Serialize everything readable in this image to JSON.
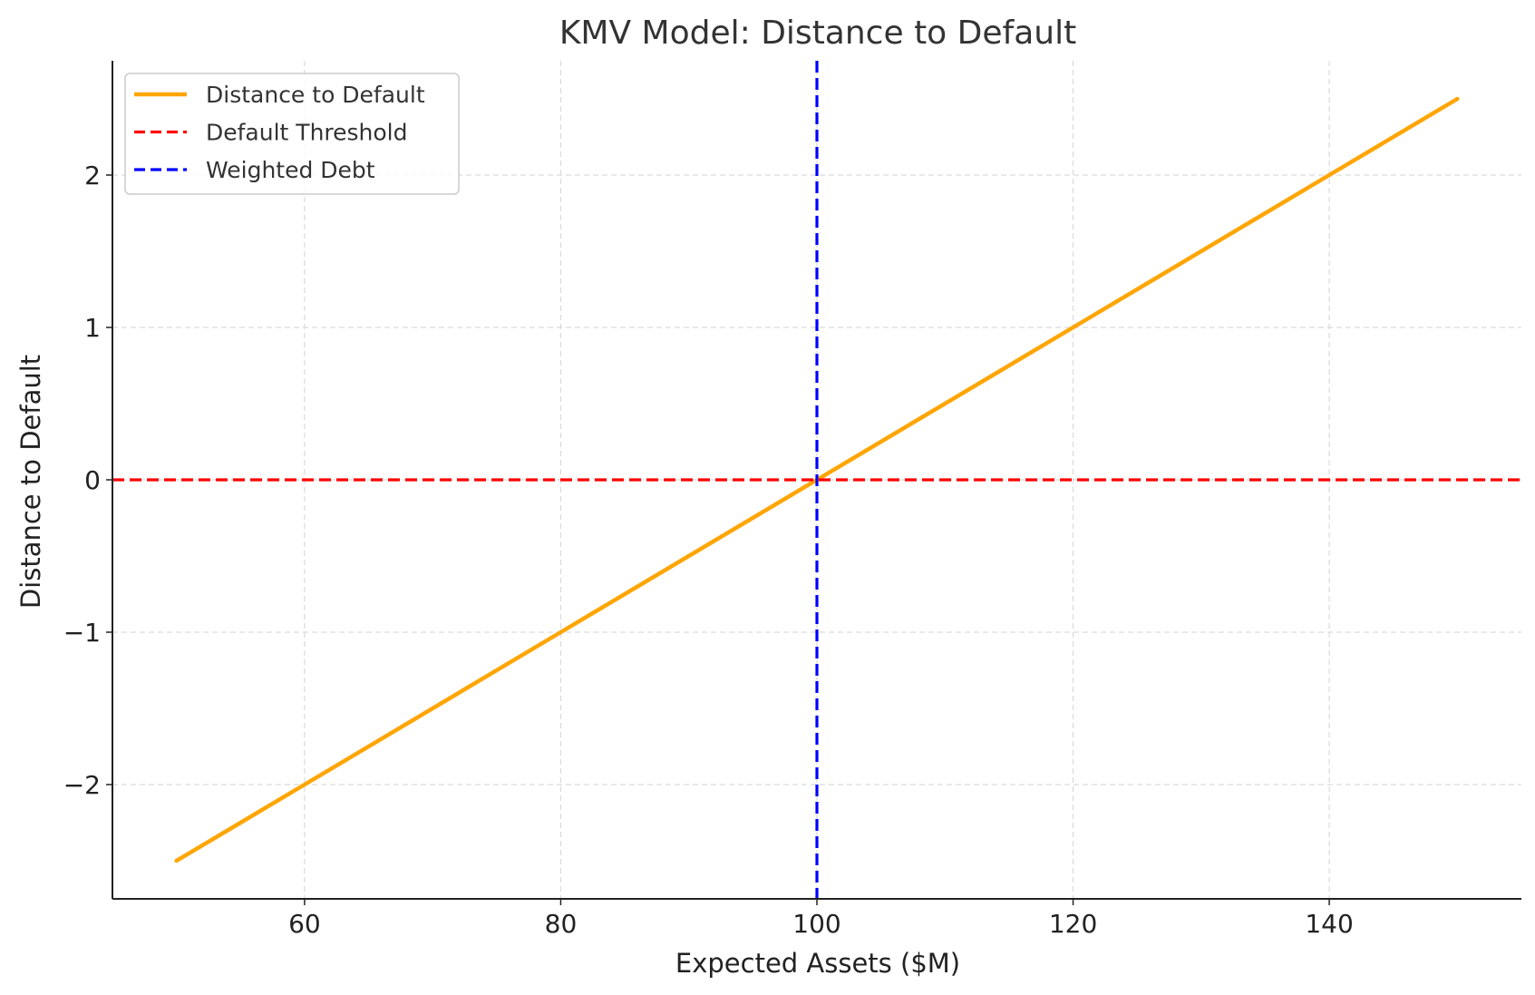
{
  "chart_data": {
    "type": "line",
    "title": "KMV Model: Distance to Default",
    "xlabel": "Expected Assets ($M)",
    "ylabel": "Distance to Default",
    "xlim": [
      45,
      155
    ],
    "ylim": [
      -2.75,
      2.75
    ],
    "x_ticks": [
      60,
      80,
      100,
      120,
      140
    ],
    "x_tick_labels": [
      "60",
      "80",
      "100",
      "120",
      "140"
    ],
    "y_ticks": [
      -2,
      -1,
      0,
      1,
      2
    ],
    "y_tick_labels": [
      "−2",
      "−1",
      "0",
      "1",
      "2"
    ],
    "grid": true,
    "legend_position": "upper-left",
    "series": [
      {
        "name": "Distance to Default",
        "color": "#FFA500",
        "style": "solid",
        "x": [
          50,
          60,
          80,
          100,
          120,
          140,
          150
        ],
        "y": [
          -2.5,
          -2.0,
          -1.0,
          0.0,
          1.0,
          2.0,
          2.5
        ]
      }
    ],
    "reference_lines": [
      {
        "name": "Default Threshold",
        "orientation": "horizontal",
        "value": 0,
        "color": "#FF0000",
        "style": "dashed"
      },
      {
        "name": "Weighted Debt",
        "orientation": "vertical",
        "value": 100,
        "color": "#0000FF",
        "style": "dashed"
      }
    ]
  }
}
